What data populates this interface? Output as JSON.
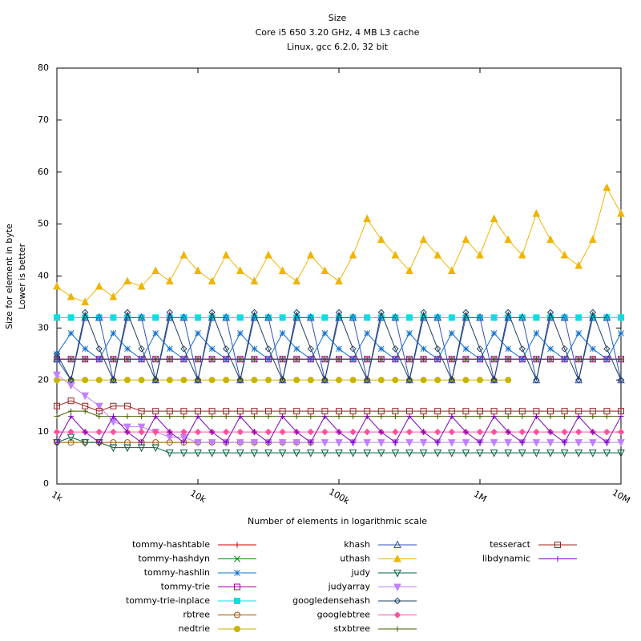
{
  "chart_data": {
    "type": "line",
    "title": "Size",
    "subtitle": [
      "Core i5 650 3.20 GHz, 4 MB L3 cache",
      "Linux, gcc 6.2.0, 32 bit"
    ],
    "xlabel": "Number of elements in logarithmic scale",
    "ylabel": [
      "Size for element in byte",
      "Lower is better"
    ],
    "xlog": true,
    "xlim": [
      1000,
      10000000
    ],
    "xticks": [
      {
        "value": 1000,
        "label": "1k"
      },
      {
        "value": 10000,
        "label": "10k"
      },
      {
        "value": 100000,
        "label": "100k"
      },
      {
        "value": 1000000,
        "label": "1M"
      },
      {
        "value": 10000000,
        "label": "10M"
      }
    ],
    "ylim": [
      0,
      80
    ],
    "yticks": [
      0,
      10,
      20,
      30,
      40,
      50,
      60,
      70,
      80
    ],
    "x": [
      1000,
      1259,
      1585,
      1995,
      2512,
      3162,
      3981,
      5012,
      6310,
      7943,
      10000,
      12589,
      15849,
      19953,
      25119,
      31623,
      39811,
      50119,
      63096,
      79433,
      100000,
      125893,
      158489,
      199526,
      251189,
      316228,
      398107,
      501187,
      630957,
      794328,
      1000000,
      1258925,
      1584893,
      1995262,
      2511886,
      3162278,
      3981072,
      5011872,
      6309573,
      7943282,
      10000000
    ],
    "series": [
      {
        "name": "tommy-hashtable",
        "color": "#d00000",
        "marker": "plus",
        "values": [
          24,
          24,
          24,
          24,
          24,
          24,
          24,
          24,
          24,
          24,
          24,
          24,
          24,
          24,
          24,
          24,
          24,
          24,
          24,
          24,
          24,
          24,
          24,
          24,
          24,
          24,
          24,
          24,
          24,
          24,
          24,
          24,
          24,
          24,
          24,
          24,
          24,
          24,
          24,
          24,
          24
        ]
      },
      {
        "name": "tommy-hashdyn",
        "color": "#009000",
        "marker": "x",
        "values": [
          24,
          24,
          24,
          24,
          24,
          24,
          24,
          24,
          24,
          24,
          24,
          24,
          24,
          24,
          24,
          24,
          24,
          24,
          24,
          24,
          24,
          24,
          24,
          24,
          24,
          24,
          24,
          24,
          24,
          24,
          24,
          24,
          24,
          24,
          24,
          24,
          24,
          24,
          24,
          24,
          24
        ]
      },
      {
        "name": "tommy-hashlin",
        "color": "#1070d0",
        "marker": "star",
        "values": [
          25,
          29,
          26,
          24,
          29,
          26,
          24,
          29,
          26,
          24,
          29,
          26,
          24,
          29,
          26,
          24,
          29,
          26,
          24,
          29,
          26,
          24,
          29,
          26,
          24,
          29,
          26,
          24,
          29,
          26,
          24,
          29,
          26,
          24,
          29,
          26,
          24,
          29,
          26,
          24,
          29
        ]
      },
      {
        "name": "tommy-trie",
        "color": "#a000a0",
        "marker": "square",
        "values": [
          24,
          24,
          24,
          24,
          24,
          24,
          24,
          24,
          24,
          24,
          24,
          24,
          24,
          24,
          24,
          24,
          24,
          24,
          24,
          24,
          24,
          24,
          24,
          24,
          24,
          24,
          24,
          24,
          24,
          24,
          24,
          24,
          24,
          24,
          24,
          24,
          24,
          24,
          24,
          24,
          24
        ]
      },
      {
        "name": "tommy-trie-inplace",
        "color": "#00e0e0",
        "marker": "filled-square",
        "values": [
          32,
          32,
          32,
          32,
          32,
          32,
          32,
          32,
          32,
          32,
          32,
          32,
          32,
          32,
          32,
          32,
          32,
          32,
          32,
          32,
          32,
          32,
          32,
          32,
          32,
          32,
          32,
          32,
          32,
          32,
          32,
          32,
          32,
          32,
          32,
          32,
          32,
          32,
          32,
          32,
          32
        ]
      },
      {
        "name": "rbtree",
        "color": "#a05000",
        "marker": "circle",
        "values": [
          8,
          8,
          8,
          8,
          8,
          8,
          8,
          8,
          8,
          8,
          8,
          8,
          8,
          8,
          8,
          8,
          8,
          8,
          8,
          null,
          null,
          null,
          null,
          null,
          null,
          null,
          null,
          null,
          null,
          null,
          null,
          null,
          null,
          null,
          null,
          null,
          null,
          null,
          null,
          null,
          null
        ]
      },
      {
        "name": "nedtrie",
        "color": "#c8b400",
        "marker": "filled-circle",
        "values": [
          20,
          20,
          20,
          20,
          20,
          20,
          20,
          20,
          20,
          20,
          20,
          20,
          20,
          20,
          20,
          20,
          20,
          20,
          20,
          20,
          20,
          20,
          20,
          20,
          20,
          20,
          20,
          20,
          20,
          20,
          20,
          20,
          20,
          null,
          null,
          null,
          null,
          null,
          null,
          null,
          null
        ]
      },
      {
        "name": "khash",
        "color": "#3050c0",
        "marker": "triangle",
        "values": [
          24,
          20,
          32,
          32,
          20,
          32,
          32,
          20,
          32,
          32,
          20,
          32,
          32,
          20,
          32,
          32,
          20,
          32,
          32,
          20,
          32,
          32,
          20,
          32,
          32,
          20,
          32,
          32,
          20,
          32,
          32,
          20,
          32,
          32,
          20,
          32,
          32,
          20,
          32,
          32,
          20
        ]
      },
      {
        "name": "uthash",
        "color": "#f0b400",
        "marker": "filled-triangle",
        "values": [
          38,
          36,
          35,
          38,
          36,
          39,
          38,
          41,
          39,
          44,
          41,
          39,
          44,
          41,
          39,
          44,
          41,
          39,
          44,
          41,
          39,
          44,
          51,
          47,
          44,
          41,
          47,
          44,
          41,
          47,
          44,
          51,
          47,
          44,
          52,
          47,
          44,
          42,
          47,
          57,
          52
        ]
      },
      {
        "name": "judy",
        "color": "#006040",
        "marker": "inv-triangle",
        "values": [
          8,
          9,
          8,
          8,
          7,
          7,
          7,
          7,
          6,
          6,
          6,
          6,
          6,
          6,
          6,
          6,
          6,
          6,
          6,
          6,
          6,
          6,
          6,
          6,
          6,
          6,
          6,
          6,
          6,
          6,
          6,
          6,
          6,
          6,
          6,
          6,
          6,
          6,
          6,
          6,
          6
        ]
      },
      {
        "name": "judyarray",
        "color": "#c080ff",
        "marker": "filled-inv-triangle",
        "values": [
          21,
          19,
          17,
          15,
          12,
          11,
          11,
          10,
          9,
          9,
          8,
          8,
          8,
          8,
          8,
          8,
          8,
          8,
          8,
          8,
          8,
          8,
          8,
          8,
          8,
          8,
          8,
          8,
          8,
          8,
          8,
          8,
          8,
          8,
          8,
          8,
          8,
          8,
          8,
          8,
          8
        ]
      },
      {
        "name": "googledensehash",
        "color": "#204060",
        "marker": "diamond",
        "values": [
          25,
          20,
          33,
          26,
          20,
          33,
          26,
          20,
          33,
          26,
          20,
          33,
          26,
          20,
          33,
          26,
          20,
          33,
          26,
          20,
          33,
          26,
          20,
          33,
          26,
          20,
          33,
          26,
          20,
          33,
          26,
          20,
          33,
          26,
          20,
          33,
          26,
          20,
          33,
          26,
          20
        ]
      },
      {
        "name": "googlebtree",
        "color": "#ff50a0",
        "marker": "filled-diamond",
        "values": [
          10,
          10,
          10,
          10,
          10,
          10,
          10,
          10,
          10,
          10,
          10,
          10,
          10,
          10,
          10,
          10,
          10,
          10,
          10,
          10,
          10,
          10,
          10,
          10,
          10,
          10,
          10,
          10,
          10,
          10,
          10,
          10,
          10,
          10,
          10,
          10,
          10,
          10,
          10,
          10,
          10
        ]
      },
      {
        "name": "stxbtree",
        "color": "#406000",
        "marker": "plus",
        "values": [
          13,
          14,
          14,
          13,
          13,
          13,
          13,
          13,
          13,
          13,
          13,
          13,
          13,
          13,
          13,
          13,
          13,
          13,
          13,
          13,
          13,
          13,
          13,
          13,
          13,
          13,
          13,
          13,
          13,
          13,
          13,
          13,
          13,
          13,
          13,
          13,
          13,
          13,
          13,
          13,
          13
        ]
      },
      {
        "name": "tesseract",
        "color": "#a02020",
        "marker": "square",
        "values": [
          15,
          16,
          15,
          14,
          15,
          15,
          14,
          14,
          14,
          14,
          14,
          14,
          14,
          14,
          14,
          14,
          14,
          14,
          14,
          14,
          14,
          14,
          14,
          14,
          14,
          14,
          14,
          14,
          14,
          14,
          14,
          14,
          14,
          14,
          14,
          14,
          14,
          14,
          14,
          14,
          14
        ]
      },
      {
        "name": "libdynamic",
        "color": "#8000c0",
        "marker": "plus",
        "values": [
          8,
          13,
          10,
          8,
          13,
          10,
          8,
          13,
          10,
          8,
          13,
          10,
          8,
          13,
          10,
          8,
          13,
          10,
          8,
          13,
          10,
          8,
          13,
          10,
          8,
          13,
          10,
          8,
          13,
          10,
          8,
          13,
          10,
          8,
          13,
          10,
          8,
          13,
          10,
          8,
          13
        ]
      }
    ]
  }
}
